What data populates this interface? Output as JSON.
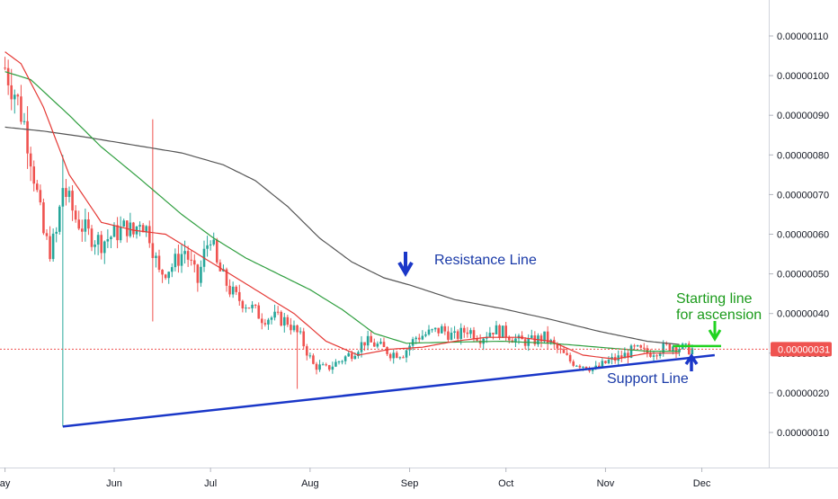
{
  "chart_data": {
    "type": "candlestick",
    "title": "",
    "xlabel": "",
    "ylabel": "",
    "x_ticks": [
      "ay",
      "Jun",
      "Jul",
      "Aug",
      "Sep",
      "Oct",
      "Nov",
      "Dec"
    ],
    "x_tick_days": [
      0,
      34,
      64,
      95,
      126,
      156,
      187,
      217
    ],
    "y_ticks": [
      "0.00000010",
      "0.00000020",
      "0.00000030",
      "0.00000040",
      "0.00000050",
      "0.00000060",
      "0.00000070",
      "0.00000080",
      "0.00000090",
      "0.00000100",
      "0.00000110"
    ],
    "y_tick_values": [
      10,
      20,
      30,
      40,
      50,
      60,
      70,
      80,
      90,
      100,
      110
    ],
    "ylim": [
      3,
      118
    ],
    "xlim": [
      -1,
      237
    ],
    "value_unit_note": "",
    "last_price": 31,
    "last_price_label": "0.00000031",
    "grid": false,
    "colors": {
      "up": "#26a69a",
      "down": "#ef5350",
      "ma_short": "#e53935",
      "ma_mid": "#2e9e3e",
      "ma_long": "#555555",
      "support": "#1a37c8",
      "start_line": "#21d321",
      "last_price": "#ef5350"
    },
    "annotations": {
      "resistance_label": "Resistance Line",
      "support_label": "Support Line",
      "start_label_1": "Starting line",
      "start_label_2": "for ascension"
    },
    "support_line": [
      [
        18,
        11.5
      ],
      [
        221,
        29.5
      ]
    ],
    "starting_line": [
      [
        208,
        31.8
      ],
      [
        223,
        31.8
      ]
    ],
    "ma_long": [
      [
        0,
        87
      ],
      [
        12,
        86
      ],
      [
        25,
        84.5
      ],
      [
        40,
        82.5
      ],
      [
        55,
        80.5
      ],
      [
        68,
        77.5
      ],
      [
        78,
        73.5
      ],
      [
        88,
        67
      ],
      [
        98,
        59
      ],
      [
        108,
        53
      ],
      [
        118,
        49
      ],
      [
        126,
        47.2
      ],
      [
        140,
        43.5
      ],
      [
        155,
        41.2
      ],
      [
        170,
        38.5
      ],
      [
        185,
        35.5
      ],
      [
        200,
        33
      ],
      [
        210,
        32.2
      ]
    ],
    "ma_mid": [
      [
        0,
        101
      ],
      [
        8,
        99
      ],
      [
        20,
        90
      ],
      [
        30,
        82
      ],
      [
        42,
        74
      ],
      [
        55,
        65
      ],
      [
        65,
        59
      ],
      [
        75,
        54
      ],
      [
        85,
        50
      ],
      [
        95,
        46
      ],
      [
        105,
        41
      ],
      [
        115,
        35
      ],
      [
        125,
        32.5
      ],
      [
        140,
        32.8
      ],
      [
        155,
        33
      ],
      [
        170,
        32.5
      ],
      [
        185,
        31.5
      ],
      [
        200,
        30.5
      ],
      [
        210,
        30.5
      ]
    ],
    "ma_short": [
      [
        0,
        106
      ],
      [
        5,
        103
      ],
      [
        12,
        92
      ],
      [
        20,
        75
      ],
      [
        30,
        63
      ],
      [
        40,
        61
      ],
      [
        50,
        60
      ],
      [
        60,
        55
      ],
      [
        70,
        50
      ],
      [
        80,
        45
      ],
      [
        90,
        40
      ],
      [
        100,
        33
      ],
      [
        110,
        29.5
      ],
      [
        120,
        31
      ],
      [
        130,
        31.5
      ],
      [
        140,
        33
      ],
      [
        150,
        34
      ],
      [
        160,
        34
      ],
      [
        170,
        33
      ],
      [
        180,
        29.5
      ],
      [
        190,
        28.5
      ],
      [
        200,
        30
      ],
      [
        210,
        30
      ]
    ],
    "close_path": [
      [
        0,
        102
      ],
      [
        3,
        96
      ],
      [
        6,
        88
      ],
      [
        8,
        80
      ],
      [
        10,
        70
      ],
      [
        12,
        60
      ],
      [
        14,
        56
      ],
      [
        16,
        60
      ],
      [
        18,
        72
      ],
      [
        20,
        68
      ],
      [
        22,
        64
      ],
      [
        26,
        60
      ],
      [
        30,
        58
      ],
      [
        34,
        60
      ],
      [
        38,
        62
      ],
      [
        40,
        60
      ],
      [
        42,
        64
      ],
      [
        45,
        60
      ],
      [
        48,
        50
      ],
      [
        52,
        52
      ],
      [
        56,
        56
      ],
      [
        60,
        48
      ],
      [
        62,
        55
      ],
      [
        64,
        60
      ],
      [
        66,
        52
      ],
      [
        70,
        46
      ],
      [
        72,
        44
      ],
      [
        76,
        42
      ],
      [
        80,
        39
      ],
      [
        84,
        39
      ],
      [
        88,
        38
      ],
      [
        92,
        34
      ],
      [
        96,
        27
      ],
      [
        100,
        26
      ],
      [
        104,
        28
      ],
      [
        108,
        30
      ],
      [
        112,
        33
      ],
      [
        116,
        32
      ],
      [
        120,
        30
      ],
      [
        124,
        30
      ],
      [
        128,
        34
      ],
      [
        132,
        35
      ],
      [
        136,
        36
      ],
      [
        140,
        34
      ],
      [
        144,
        36
      ],
      [
        148,
        34
      ],
      [
        152,
        36
      ],
      [
        156,
        35
      ],
      [
        160,
        33
      ],
      [
        164,
        33
      ],
      [
        168,
        34
      ],
      [
        172,
        31
      ],
      [
        176,
        28
      ],
      [
        180,
        27
      ],
      [
        184,
        26
      ],
      [
        188,
        28
      ],
      [
        192,
        29
      ],
      [
        196,
        31
      ],
      [
        200,
        30
      ],
      [
        204,
        31
      ],
      [
        208,
        32
      ],
      [
        212,
        31
      ],
      [
        214,
        31
      ]
    ],
    "spikes": [
      {
        "x": 18,
        "high": 80,
        "low": 11.5
      },
      {
        "x": 46,
        "high": 89,
        "low": 38
      },
      {
        "x": 91,
        "high": 35,
        "low": 21
      }
    ]
  }
}
